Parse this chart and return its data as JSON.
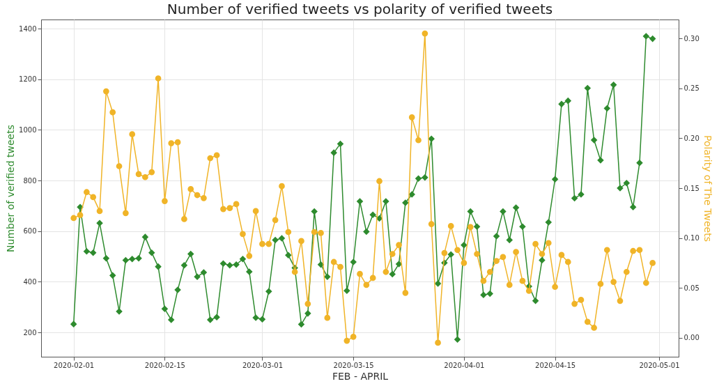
{
  "chart_data": {
    "type": "line",
    "title": "Number of verified tweets vs polarity of verified tweets",
    "xlabel": "FEB - APRIL",
    "ylabel": "Number of verified tweets",
    "y2label": "Polarity of The Tweets",
    "x": [
      "2020-02-01",
      "2020-02-02",
      "2020-02-03",
      "2020-02-04",
      "2020-02-05",
      "2020-02-06",
      "2020-02-07",
      "2020-02-08",
      "2020-02-09",
      "2020-02-10",
      "2020-02-11",
      "2020-02-12",
      "2020-02-13",
      "2020-02-14",
      "2020-02-15",
      "2020-02-16",
      "2020-02-17",
      "2020-02-18",
      "2020-02-19",
      "2020-02-20",
      "2020-02-21",
      "2020-02-22",
      "2020-02-23",
      "2020-02-24",
      "2020-02-25",
      "2020-02-26",
      "2020-02-27",
      "2020-02-28",
      "2020-02-29",
      "2020-03-01",
      "2020-03-02",
      "2020-03-03",
      "2020-03-04",
      "2020-03-05",
      "2020-03-06",
      "2020-03-07",
      "2020-03-08",
      "2020-03-09",
      "2020-03-10",
      "2020-03-11",
      "2020-03-12",
      "2020-03-13",
      "2020-03-14",
      "2020-03-15",
      "2020-03-16",
      "2020-03-17",
      "2020-03-18",
      "2020-03-19",
      "2020-03-20",
      "2020-03-21",
      "2020-03-22",
      "2020-03-23",
      "2020-03-24",
      "2020-03-25",
      "2020-03-26",
      "2020-03-27",
      "2020-03-28",
      "2020-03-29",
      "2020-03-30",
      "2020-03-31",
      "2020-04-01",
      "2020-04-02",
      "2020-04-03",
      "2020-04-04",
      "2020-04-05",
      "2020-04-06",
      "2020-04-07",
      "2020-04-08",
      "2020-04-09",
      "2020-04-10",
      "2020-04-11",
      "2020-04-12",
      "2020-04-13",
      "2020-04-14",
      "2020-04-15",
      "2020-04-16",
      "2020-04-17",
      "2020-04-18",
      "2020-04-19",
      "2020-04-20",
      "2020-04-21",
      "2020-04-22",
      "2020-04-23",
      "2020-04-24",
      "2020-04-25",
      "2020-04-26",
      "2020-04-27",
      "2020-04-28",
      "2020-04-29",
      "2020-04-30"
    ],
    "series": [
      {
        "color": "#2e8b2e",
        "marker": "diamond",
        "values": [
          233,
          695,
          520,
          515,
          632,
          493,
          425,
          283,
          485,
          490,
          493,
          577,
          515,
          460,
          293,
          250,
          368,
          465,
          510,
          420,
          437,
          250,
          260,
          472,
          465,
          468,
          490,
          440,
          258,
          252,
          362,
          565,
          572,
          505,
          455,
          232,
          275,
          678,
          468,
          420,
          910,
          945,
          365,
          478,
          718,
          598,
          665,
          650,
          718,
          430,
          470,
          712,
          745,
          808,
          812,
          965,
          393,
          475,
          508,
          172,
          545,
          678,
          618,
          348,
          353,
          580,
          678,
          565,
          693,
          618,
          382,
          325,
          485,
          635,
          805,
          1102,
          1115,
          730,
          745,
          1165,
          960,
          880,
          1085,
          1178,
          770,
          790,
          695,
          870,
          1370,
          1360
        ]
      },
      {
        "color": "#f0b428",
        "marker": "circle",
        "axis": "y2",
        "values": [
          0.12,
          0.123,
          0.146,
          0.141,
          0.127,
          0.247,
          0.226,
          0.172,
          0.125,
          0.204,
          0.164,
          0.161,
          0.166,
          0.26,
          0.137,
          0.195,
          0.196,
          0.119,
          0.149,
          0.143,
          0.14,
          0.18,
          0.183,
          0.129,
          0.13,
          0.134,
          0.104,
          0.082,
          0.127,
          0.094,
          0.094,
          0.118,
          0.152,
          0.106,
          0.066,
          0.097,
          0.034,
          0.106,
          0.105,
          0.02,
          0.076,
          0.071,
          -0.003,
          0.001,
          0.064,
          0.053,
          0.06,
          0.157,
          0.066,
          0.084,
          0.093,
          0.045,
          0.221,
          0.198,
          0.305,
          0.114,
          -0.005,
          0.085,
          0.112,
          0.088,
          0.075,
          0.111,
          0.084,
          0.057,
          0.066,
          0.077,
          0.081,
          0.053,
          0.086,
          0.057,
          0.047,
          0.094,
          0.084,
          0.095,
          0.051,
          0.083,
          0.076,
          0.034,
          0.038,
          0.016,
          0.01,
          0.054,
          0.088,
          0.056,
          0.037,
          0.066,
          0.087,
          0.088,
          0.055,
          0.075
        ]
      }
    ],
    "xlim": [
      "2020-01-27",
      "2020-05-04"
    ],
    "xticks": [
      "2020-02-01",
      "2020-02-15",
      "2020-03-01",
      "2020-03-15",
      "2020-04-01",
      "2020-04-15",
      "2020-05-01"
    ],
    "ylim": [
      104,
      1436
    ],
    "yticks": [
      200,
      400,
      600,
      800,
      1000,
      1200,
      1400
    ],
    "y2lim": [
      -0.019,
      0.319
    ],
    "y2ticks": [
      {
        "value": 0,
        "label": "0.00"
      },
      {
        "value": 0.05,
        "label": "0.05"
      },
      {
        "value": 0.1,
        "label": "0.10"
      },
      {
        "value": 0.15,
        "label": "0.15"
      },
      {
        "value": 0.2,
        "label": "0.20"
      },
      {
        "value": 0.25,
        "label": "0.25"
      },
      {
        "value": 0.3,
        "label": "0.30"
      }
    ],
    "grid": true,
    "line_style": "solid"
  }
}
